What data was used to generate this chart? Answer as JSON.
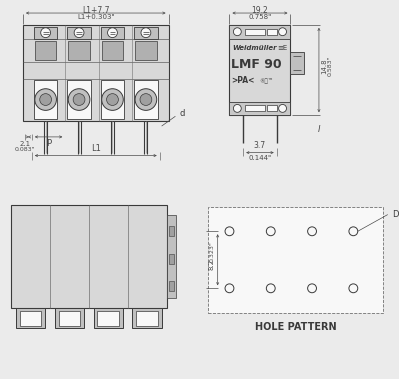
{
  "bg_color": "#ebebeb",
  "line_color": "#3a3a3a",
  "dim_color": "#4a4a4a",
  "fill_body": "#d8d8d8",
  "fill_inner": "#c0c0c0",
  "fill_white": "#f8f8f8",
  "title_text": "LMF 90",
  "brand_text": "Weidmüller",
  "cert_text": ">PA<",
  "dim_top_mm": "L1+7.7",
  "dim_top_in": "L1+0.303\"",
  "dim_right_w_mm": "19.2",
  "dim_right_w_in": "0.758\"",
  "dim_right_h_mm": "14.8",
  "dim_right_h_in": "0.583\"",
  "dim_right_l_text": "l",
  "dim_bot_left_mm": "2.1",
  "dim_bot_left_in": "0.083\"",
  "dim_p_text": "P",
  "dim_d_text": "d",
  "dim_l1_text": "L1",
  "dim_bot_right_mm": "3.7",
  "dim_bot_right_in": "0.144\"",
  "dim_hole_h_mm": "8.2",
  "dim_hole_h_in": "0.323\"",
  "hole_pattern_text": "HOLE PATTERN",
  "dim_D_text": "D"
}
